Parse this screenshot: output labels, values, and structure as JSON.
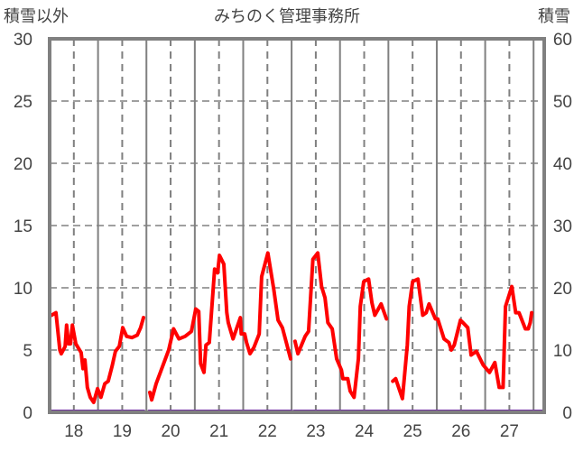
{
  "chart_data": {
    "type": "line",
    "title": "みちのく管理事務所",
    "ylabel_left": "積雪以外",
    "ylabel_right": "積雪",
    "xlim": [
      17.5,
      27.72
    ],
    "ylim_left": [
      0,
      30
    ],
    "ylim_right": [
      0,
      60
    ],
    "yticks_left": [
      "0",
      "5",
      "10",
      "15",
      "20",
      "25",
      "30"
    ],
    "yticks_right": [
      "0",
      "10",
      "20",
      "30",
      "40",
      "50",
      "60"
    ],
    "xticks": [
      "18",
      "19",
      "20",
      "21",
      "22",
      "23",
      "24",
      "25",
      "26",
      "27"
    ],
    "grid": true,
    "colors": {
      "main": "#ff0000",
      "snow": "#7030a0",
      "frame": "#808080"
    },
    "series": [
      {
        "name": "積雪以外",
        "axis": "left",
        "segments": [
          [
            [
              17.54,
              7.8
            ],
            [
              17.63,
              8.0
            ],
            [
              17.71,
              5.0
            ],
            [
              17.74,
              4.7
            ],
            [
              17.82,
              5.3
            ],
            [
              17.85,
              7.0
            ],
            [
              17.89,
              5.5
            ],
            [
              17.93,
              5.5
            ],
            [
              17.97,
              7.0
            ],
            [
              18.04,
              5.5
            ],
            [
              18.12,
              5.0
            ],
            [
              18.15,
              4.8
            ],
            [
              18.19,
              3.5
            ],
            [
              18.23,
              4.2
            ],
            [
              18.28,
              2.0
            ],
            [
              18.34,
              1.2
            ],
            [
              18.41,
              0.8
            ],
            [
              18.49,
              1.9
            ],
            [
              18.56,
              1.2
            ],
            [
              18.64,
              2.3
            ],
            [
              18.71,
              2.5
            ],
            [
              18.79,
              3.7
            ],
            [
              18.86,
              4.9
            ],
            [
              18.94,
              5.3
            ],
            [
              19.01,
              6.8
            ],
            [
              19.09,
              6.1
            ],
            [
              19.2,
              6.0
            ],
            [
              19.31,
              6.2
            ],
            [
              19.38,
              6.8
            ],
            [
              19.44,
              7.6
            ]
          ],
          [
            [
              19.57,
              1.6
            ],
            [
              19.61,
              1.0
            ],
            [
              19.7,
              2.3
            ],
            [
              19.96,
              5.0
            ],
            [
              20.06,
              6.7
            ],
            [
              20.17,
              5.9
            ],
            [
              20.3,
              6.1
            ],
            [
              20.43,
              6.5
            ],
            [
              20.52,
              8.3
            ],
            [
              20.58,
              8.1
            ],
            [
              20.62,
              3.9
            ],
            [
              20.69,
              3.2
            ],
            [
              20.73,
              5.4
            ],
            [
              20.8,
              5.6
            ],
            [
              20.91,
              11.5
            ],
            [
              20.97,
              11.2
            ],
            [
              21.01,
              12.6
            ],
            [
              21.1,
              11.9
            ],
            [
              21.16,
              8.0
            ],
            [
              21.19,
              7.2
            ],
            [
              21.29,
              5.9
            ],
            [
              21.44,
              7.6
            ],
            [
              21.46,
              6.3
            ],
            [
              21.53,
              6.3
            ],
            [
              21.57,
              5.6
            ],
            [
              21.64,
              4.7
            ],
            [
              21.72,
              5.2
            ],
            [
              21.83,
              6.3
            ],
            [
              21.88,
              10.9
            ],
            [
              22.01,
              12.8
            ],
            [
              22.13,
              9.9
            ],
            [
              22.22,
              7.4
            ],
            [
              22.31,
              6.8
            ],
            [
              22.48,
              4.3
            ]
          ],
          [
            [
              22.57,
              5.7
            ],
            [
              22.63,
              4.7
            ],
            [
              22.78,
              6.1
            ],
            [
              22.85,
              6.5
            ],
            [
              22.94,
              12.3
            ],
            [
              23.04,
              12.8
            ],
            [
              23.12,
              10.1
            ],
            [
              23.19,
              9.2
            ],
            [
              23.25,
              7.2
            ],
            [
              23.34,
              6.7
            ],
            [
              23.43,
              4.3
            ],
            [
              23.53,
              3.4
            ],
            [
              23.56,
              2.7
            ],
            [
              23.66,
              2.7
            ],
            [
              23.71,
              1.7
            ],
            [
              23.79,
              1.2
            ],
            [
              23.88,
              4.3
            ],
            [
              23.92,
              8.5
            ],
            [
              23.99,
              10.5
            ],
            [
              24.09,
              10.7
            ],
            [
              24.16,
              8.8
            ],
            [
              24.22,
              7.8
            ],
            [
              24.35,
              8.7
            ],
            [
              24.46,
              7.5
            ]
          ],
          [
            [
              24.59,
              2.5
            ],
            [
              24.65,
              2.7
            ],
            [
              24.79,
              1.1
            ],
            [
              24.89,
              5.4
            ],
            [
              24.93,
              8.5
            ],
            [
              25.0,
              10.5
            ],
            [
              25.11,
              10.7
            ],
            [
              25.21,
              7.8
            ],
            [
              25.28,
              8.0
            ],
            [
              25.34,
              8.7
            ],
            [
              25.47,
              7.5
            ],
            [
              25.52,
              7.5
            ],
            [
              25.65,
              5.9
            ],
            [
              25.75,
              5.6
            ],
            [
              25.8,
              5.0
            ],
            [
              25.86,
              5.4
            ],
            [
              25.99,
              7.4
            ],
            [
              26.04,
              7.2
            ],
            [
              26.14,
              6.8
            ],
            [
              26.21,
              4.6
            ],
            [
              26.32,
              4.9
            ],
            [
              26.46,
              3.8
            ],
            [
              26.59,
              3.2
            ],
            [
              26.7,
              4.0
            ],
            [
              26.79,
              2.0
            ],
            [
              26.87,
              2.0
            ],
            [
              26.92,
              8.5
            ],
            [
              27.05,
              10.1
            ],
            [
              27.13,
              8.0
            ],
            [
              27.2,
              8.0
            ],
            [
              27.33,
              6.7
            ],
            [
              27.39,
              6.7
            ],
            [
              27.43,
              7.2
            ],
            [
              27.46,
              8.0
            ]
          ]
        ]
      },
      {
        "name": "積雪",
        "axis": "right",
        "segments": [
          [
            [
              17.5,
              0
            ],
            [
              19.45,
              0
            ]
          ],
          [
            [
              19.55,
              0
            ],
            [
              22.5,
              0
            ]
          ],
          [
            [
              22.55,
              0
            ],
            [
              27.72,
              0
            ]
          ]
        ]
      }
    ]
  }
}
